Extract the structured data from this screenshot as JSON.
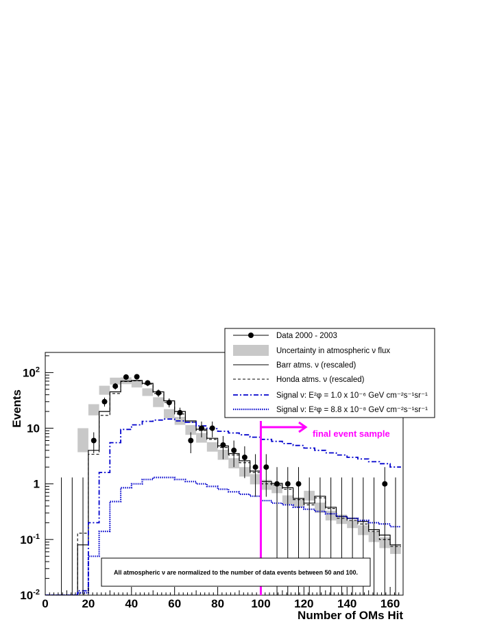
{
  "chart_data": {
    "type": "histogram",
    "xlabel": "Number of OMs Hit",
    "ylabel": "Events",
    "xlim": [
      0,
      166
    ],
    "ylim": [
      0.01,
      230
    ],
    "yscale": "log",
    "x_ticks": [
      0,
      20,
      40,
      60,
      80,
      100,
      120,
      140,
      160
    ],
    "y_ticks": [
      {
        "value": 0.01,
        "base": "10",
        "exp": "-2"
      },
      {
        "value": 0.1,
        "base": "10",
        "exp": "-1"
      },
      {
        "value": 1,
        "base": "1",
        "exp": ""
      },
      {
        "value": 10,
        "base": "10",
        "exp": ""
      },
      {
        "value": 100,
        "base": "10",
        "exp": "2"
      }
    ],
    "bin_edges": [
      0,
      5,
      10,
      15,
      20,
      25,
      30,
      35,
      40,
      45,
      50,
      55,
      60,
      65,
      70,
      75,
      80,
      85,
      90,
      95,
      100,
      105,
      110,
      115,
      120,
      125,
      130,
      135,
      140,
      145,
      150,
      155,
      160,
      165
    ],
    "series": [
      {
        "name": "Data 2000 - 2003",
        "style": "points",
        "x": [
          7.5,
          12.5,
          17.5,
          22.5,
          27.5,
          32.5,
          37.5,
          42.5,
          47.5,
          52.5,
          57.5,
          62.5,
          67.5,
          72.5,
          77.5,
          82.5,
          87.5,
          92.5,
          97.5,
          102.5,
          107.5,
          112.5,
          117.5,
          122.5,
          127.5,
          132.5,
          137.5,
          142.5,
          147.5,
          152.5,
          157.5,
          162.5
        ],
        "y": [
          0,
          0,
          0,
          6,
          30,
          57,
          83,
          84,
          65,
          43,
          29,
          19,
          6,
          10,
          10,
          5,
          4,
          3,
          2,
          2,
          1,
          1,
          1,
          0,
          0,
          0,
          0,
          0,
          0,
          0,
          1,
          0
        ]
      },
      {
        "name": "Uncertainty in atmospheric ν flux",
        "style": "band",
        "lo": [
          0.01,
          0.01,
          0.01,
          3.7,
          17,
          40,
          61,
          62,
          54,
          38,
          24,
          15,
          11.5,
          7.6,
          5.5,
          3.8,
          2.7,
          1.9,
          1.35,
          0.98,
          0.78,
          0.68,
          0.43,
          0.38,
          0.5,
          0.3,
          0.22,
          0.19,
          0.16,
          0.12,
          0.09,
          0.07,
          0.055
        ],
        "hi": [
          0.01,
          0.01,
          0.01,
          10,
          27,
          58,
          81,
          82,
          73,
          52,
          36,
          22,
          16,
          11.4,
          8.2,
          5.6,
          4.1,
          2.9,
          2.0,
          1.5,
          1.18,
          1.02,
          0.62,
          0.54,
          0.75,
          0.46,
          0.33,
          0.28,
          0.22,
          0.18,
          0.14,
          0.11,
          0.08
        ]
      },
      {
        "name": "Barr atms. ν (rescaled)",
        "style": "solid-step",
        "color": "#000000",
        "values": [
          0.01,
          0.01,
          0.01,
          0.08,
          4,
          20,
          45,
          70,
          72,
          64,
          45,
          31,
          20,
          13.5,
          9.6,
          6.6,
          4.8,
          3.5,
          2.6,
          1.7,
          1.1,
          1.02,
          0.85,
          0.55,
          0.45,
          0.6,
          0.38,
          0.26,
          0.24,
          0.21,
          0.15,
          0.12,
          0.08
        ]
      },
      {
        "name": "Honda atms. ν (rescaled)",
        "style": "dashed-step",
        "color": "#000000",
        "values": [
          0.01,
          0.01,
          0.01,
          0.13,
          3.4,
          17,
          42,
          69,
          71,
          62,
          42,
          29,
          18,
          12.8,
          9.1,
          6.3,
          4.5,
          3.3,
          2.4,
          1.6,
          1.0,
          0.95,
          0.8,
          0.52,
          0.42,
          0.56,
          0.36,
          0.24,
          0.22,
          0.19,
          0.14,
          0.1,
          0.075
        ]
      },
      {
        "name": "Signal ν: E²φ = 1.0 x 10⁻⁶ GeV cm⁻²s⁻¹sr⁻¹",
        "style": "dashdot-step",
        "color": "#0000cc",
        "values": [
          0.01,
          0.01,
          0.01,
          0.012,
          0.2,
          1.6,
          5.5,
          9.5,
          11.5,
          13.3,
          14,
          14.6,
          13.5,
          12.8,
          11,
          9.8,
          8.8,
          8.2,
          7.6,
          6.9,
          6.3,
          5.8,
          5.3,
          4.9,
          4.4,
          4.0,
          3.6,
          3.3,
          3.0,
          2.8,
          2.5,
          2.3,
          2.0
        ]
      },
      {
        "name": "Signal ν: E²φ = 8.8 x 10⁻⁸ GeV cm⁻²s⁻¹sr⁻¹",
        "style": "dotted-step",
        "color": "#0000cc",
        "values": [
          0.01,
          0.01,
          0.01,
          0.011,
          0.05,
          0.14,
          0.48,
          0.85,
          1.0,
          1.2,
          1.3,
          1.3,
          1.2,
          1.1,
          1.0,
          0.9,
          0.8,
          0.72,
          0.65,
          0.6,
          0.5,
          0.45,
          0.42,
          0.38,
          0.35,
          0.32,
          0.29,
          0.26,
          0.24,
          0.22,
          0.2,
          0.19,
          0.17
        ]
      }
    ],
    "cut": {
      "x": 100,
      "label": "final event sample",
      "color": "#ff00ff"
    },
    "note": "All atmospheric ν are normalized to the number of data events between 50 and 100.",
    "legend_position": "top-right"
  },
  "legend": [
    {
      "label": "Data 2000 - 2003",
      "style": "marker"
    },
    {
      "label": "Uncertainty in atmospheric ν flux",
      "style": "band"
    },
    {
      "label": "Barr atms. ν (rescaled)",
      "style": "solid"
    },
    {
      "label": "Honda atms. ν (rescaled)",
      "style": "dashed"
    },
    {
      "label": "Signal ν: E²φ = 1.0 x 10⁻⁶ GeV cm⁻²s⁻¹sr⁻¹",
      "style": "dashdot"
    },
    {
      "label": "Signal ν: E²φ = 8.8 x 10⁻⁸ GeV cm⁻²s⁻¹sr⁻¹",
      "style": "dotted"
    }
  ]
}
